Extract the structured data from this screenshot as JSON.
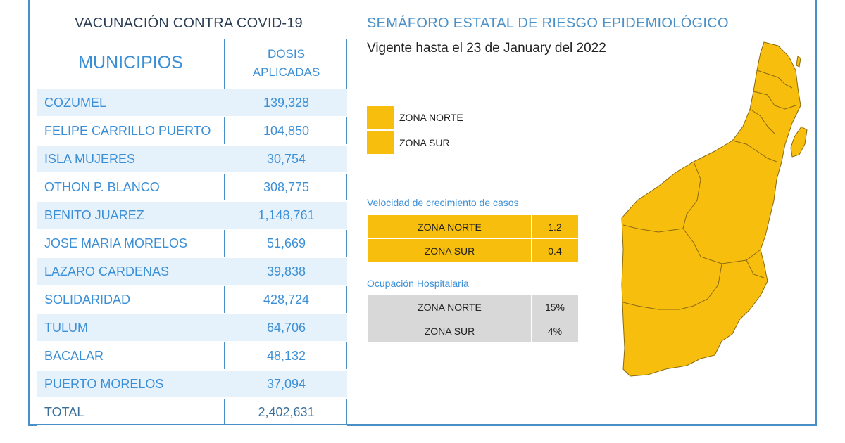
{
  "vacunacion": {
    "title": "VACUNACIÓN CONTRA COVID-19",
    "col_municipios": "MUNICIPIOS",
    "col_dosis_line1": "DOSIS",
    "col_dosis_line2": "APLICADAS",
    "rows": [
      {
        "municipio": "COZUMEL",
        "dosis": "139,328"
      },
      {
        "municipio": "FELIPE CARRILLO PUERTO",
        "dosis": "104,850"
      },
      {
        "municipio": "ISLA MUJERES",
        "dosis": "30,754"
      },
      {
        "municipio": "OTHON P. BLANCO",
        "dosis": "308,775"
      },
      {
        "municipio": "BENITO JUAREZ",
        "dosis": "1,148,761"
      },
      {
        "municipio": "JOSE MARIA MORELOS",
        "dosis": "51,669"
      },
      {
        "municipio": "LAZARO CARDENAS",
        "dosis": "39,838"
      },
      {
        "municipio": "SOLIDARIDAD",
        "dosis": "428,724"
      },
      {
        "municipio": "TULUM",
        "dosis": "64,706"
      },
      {
        "municipio": "BACALAR",
        "dosis": "48,132"
      },
      {
        "municipio": "PUERTO MORELOS",
        "dosis": "37,094"
      }
    ],
    "total": {
      "municipio": "TOTAL",
      "dosis": "2,402,631"
    }
  },
  "semaforo": {
    "title": "SEMÁFORO ESTATAL DE RIESGO EPIDEMIOLÓGICO",
    "vigente": "Vigente hasta el 23 de January del 2022",
    "legend": [
      {
        "label": "ZONA NORTE",
        "color": "#f7be0d"
      },
      {
        "label": "ZONA SUR",
        "color": "#f7be0d"
      }
    ],
    "velocidad": {
      "title": "Velocidad de crecimiento de casos",
      "rows": [
        {
          "zona": "ZONA NORTE",
          "valor": "1.2"
        },
        {
          "zona": "ZONA SUR",
          "valor": "0.4"
        }
      ]
    },
    "ocupacion": {
      "title": "Ocupación Hospitalaria",
      "rows": [
        {
          "zona": "ZONA NORTE",
          "valor": "15%"
        },
        {
          "zona": "ZONA SUR",
          "valor": "4%"
        }
      ]
    },
    "map_color": "#f7be0d"
  }
}
